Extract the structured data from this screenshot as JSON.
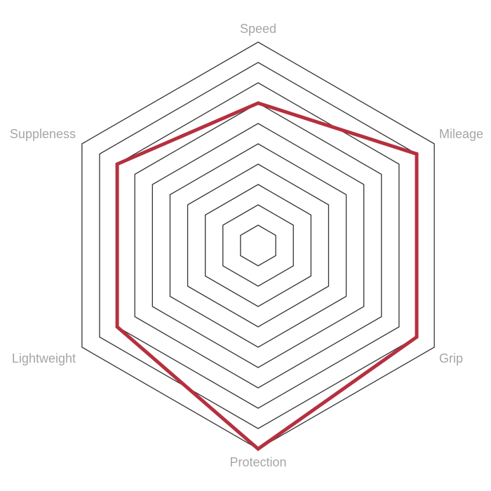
{
  "chart_data": {
    "type": "radar",
    "axes": [
      "Speed",
      "Mileage",
      "Grip",
      "Protection",
      "Lightweight",
      "Suppleness"
    ],
    "series": [
      {
        "values": [
          7,
          9,
          9,
          10,
          8,
          8
        ],
        "color": "#b5303f"
      }
    ],
    "range": [
      0,
      10
    ],
    "grid_levels": 10,
    "grid_color": "#333333",
    "label_color": "#a6a6a6"
  }
}
